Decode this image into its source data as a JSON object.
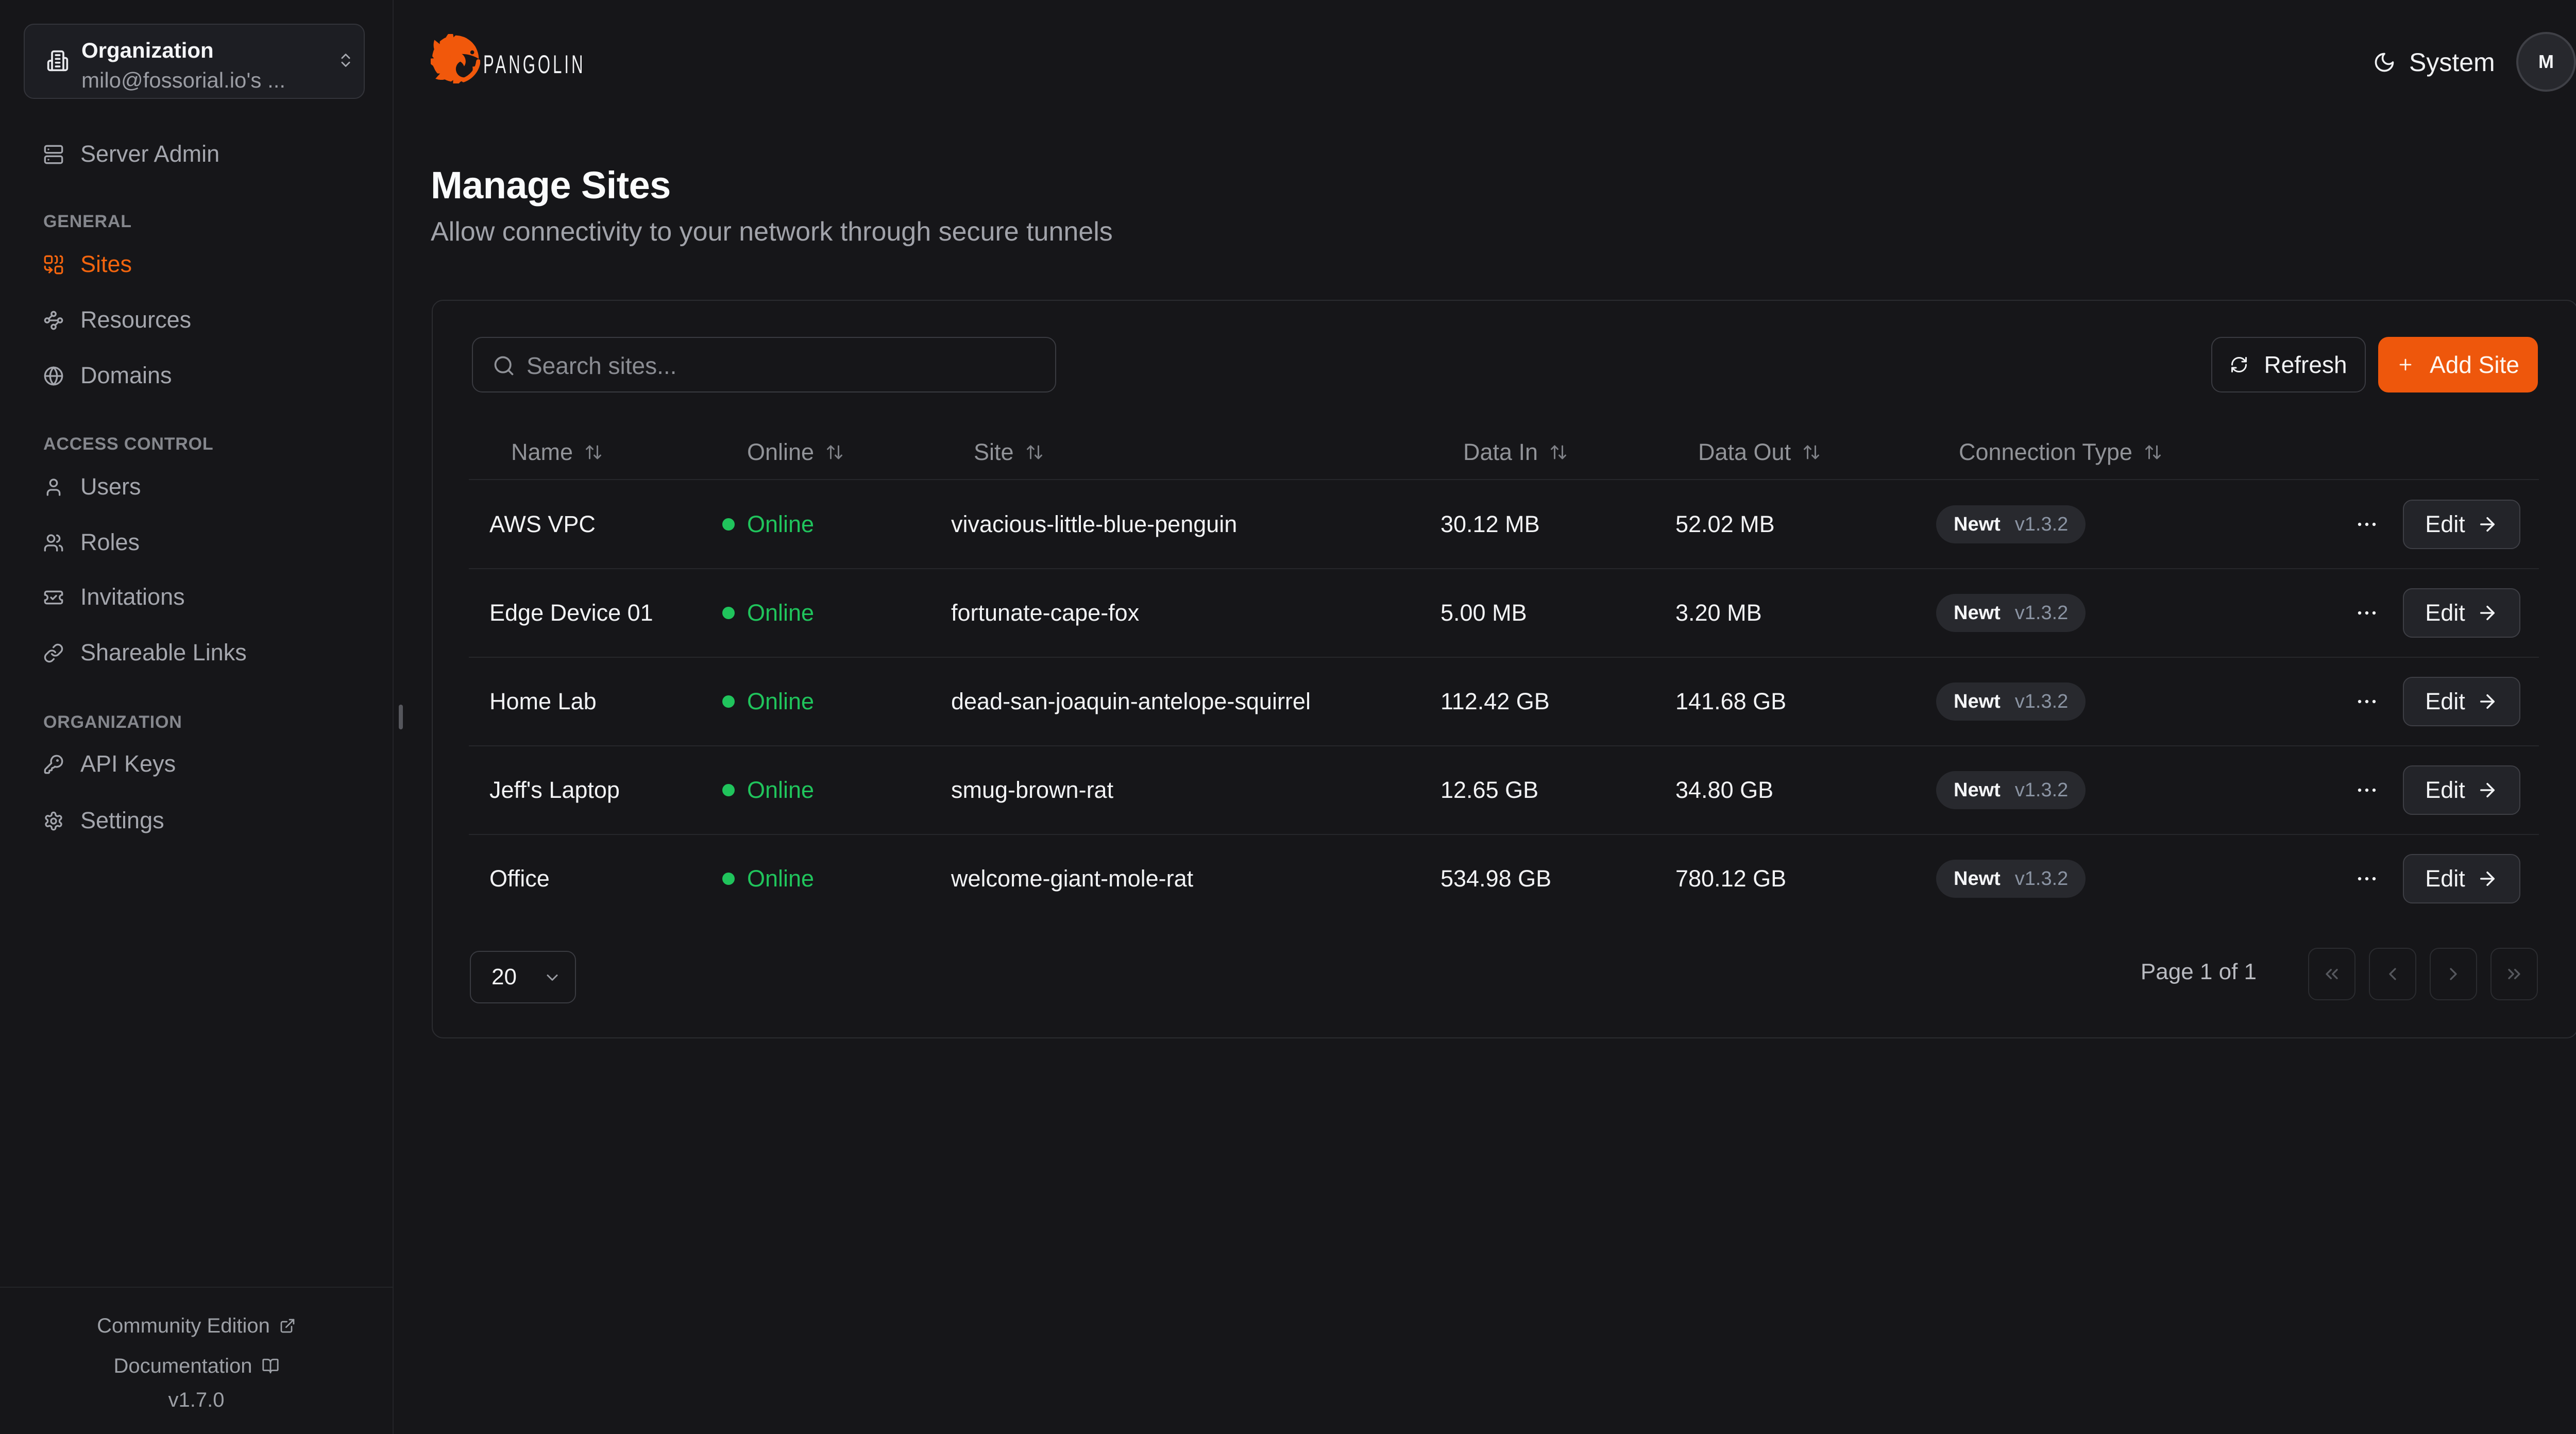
{
  "org_switcher": {
    "label": "Organization",
    "value": "milo@fossorial.io's ...",
    "icon": "building-icon",
    "toggle_icon": "chevrons-up-down-icon"
  },
  "sidebar": {
    "server_admin": {
      "label": "Server Admin",
      "icon": "server-icon"
    },
    "sections": [
      {
        "heading": "GENERAL",
        "items": [
          {
            "label": "Sites",
            "icon": "sites-combine-icon",
            "active": true
          },
          {
            "label": "Resources",
            "icon": "waypoints-icon",
            "active": false
          },
          {
            "label": "Domains",
            "icon": "globe-icon",
            "active": false
          }
        ]
      },
      {
        "heading": "ACCESS CONTROL",
        "items": [
          {
            "label": "Users",
            "icon": "user-icon",
            "active": false
          },
          {
            "label": "Roles",
            "icon": "users-icon",
            "active": false
          },
          {
            "label": "Invitations",
            "icon": "ticket-check-icon",
            "active": false
          },
          {
            "label": "Shareable Links",
            "icon": "link-icon",
            "active": false
          }
        ]
      },
      {
        "heading": "ORGANIZATION",
        "items": [
          {
            "label": "API Keys",
            "icon": "key-icon",
            "active": false
          },
          {
            "label": "Settings",
            "icon": "gear-icon",
            "active": false
          }
        ]
      }
    ],
    "footer": {
      "community_edition": "Community Edition",
      "documentation": "Documentation",
      "version": "v1.7.0"
    }
  },
  "header": {
    "brand": "PANGOLIN",
    "theme_label": "System",
    "theme_icon": "moon-icon",
    "avatar_initial": "M"
  },
  "page": {
    "title": "Manage Sites",
    "subtitle": "Allow connectivity to your network through secure tunnels"
  },
  "toolbar": {
    "search_placeholder": "Search sites...",
    "refresh_label": "Refresh",
    "add_site_label": "Add Site"
  },
  "table": {
    "columns": [
      "Name",
      "Online",
      "Site",
      "Data In",
      "Data Out",
      "Connection Type"
    ],
    "rows": [
      {
        "name": "AWS VPC",
        "status": "Online",
        "site": "vivacious-little-blue-penguin",
        "data_in": "30.12 MB",
        "data_out": "52.02 MB",
        "conn_type": "Newt",
        "conn_version": "v1.3.2",
        "edit_label": "Edit"
      },
      {
        "name": "Edge Device 01",
        "status": "Online",
        "site": "fortunate-cape-fox",
        "data_in": "5.00 MB",
        "data_out": "3.20 MB",
        "conn_type": "Newt",
        "conn_version": "v1.3.2",
        "edit_label": "Edit"
      },
      {
        "name": "Home Lab",
        "status": "Online",
        "site": "dead-san-joaquin-antelope-squirrel",
        "data_in": "112.42 GB",
        "data_out": "141.68 GB",
        "conn_type": "Newt",
        "conn_version": "v1.3.2",
        "edit_label": "Edit"
      },
      {
        "name": "Jeff's Laptop",
        "status": "Online",
        "site": "smug-brown-rat",
        "data_in": "12.65 GB",
        "data_out": "34.80 GB",
        "conn_type": "Newt",
        "conn_version": "v1.3.2",
        "edit_label": "Edit"
      },
      {
        "name": "Office",
        "status": "Online",
        "site": "welcome-giant-mole-rat",
        "data_in": "534.98 GB",
        "data_out": "780.12 GB",
        "conn_type": "Newt",
        "conn_version": "v1.3.2",
        "edit_label": "Edit"
      }
    ]
  },
  "pagination": {
    "page_size": "20",
    "page_info": "Page 1 of 1"
  },
  "colors": {
    "accent_orange": "#ee570c",
    "active_nav_orange": "#f3650e",
    "online_green": "#20c45c",
    "background": "#161619"
  }
}
